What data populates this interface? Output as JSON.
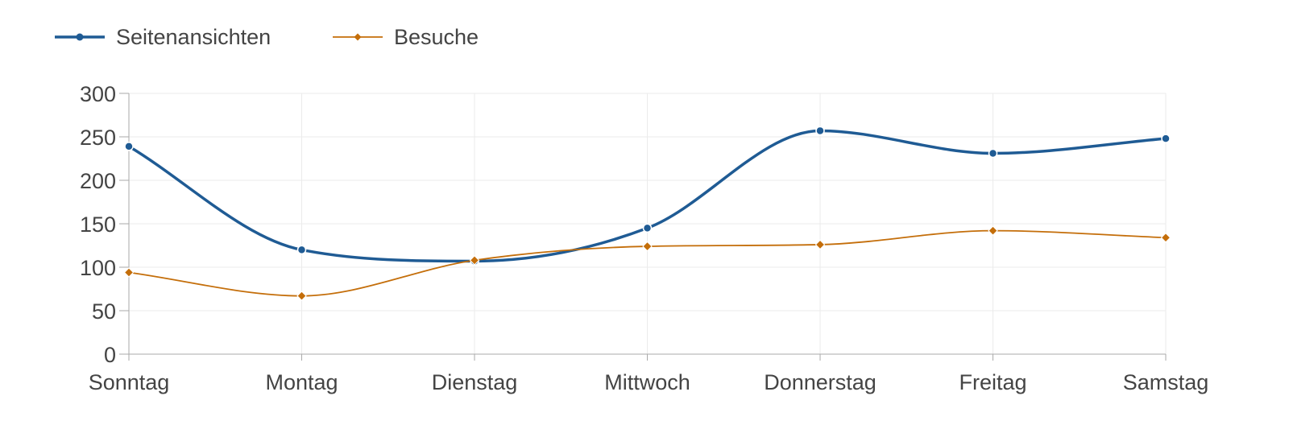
{
  "chart_data": {
    "type": "line",
    "title": "",
    "xlabel": "",
    "ylabel": "",
    "categories": [
      "Sonntag",
      "Montag",
      "Dienstag",
      "Mittwoch",
      "Donnerstag",
      "Freitag",
      "Samstag"
    ],
    "ylim": [
      0,
      300
    ],
    "yticks": [
      0,
      50,
      100,
      150,
      200,
      250,
      300
    ],
    "grid": true,
    "legend_position": "top-left",
    "series": [
      {
        "name": "Seitenansichten",
        "values": [
          239,
          120,
          107,
          145,
          257,
          231,
          248
        ],
        "color": "#1f5b94",
        "marker": "circle",
        "smooth": true
      },
      {
        "name": "Besuche",
        "values": [
          94,
          67,
          108,
          124,
          126,
          142,
          134
        ],
        "color": "#c46e0a",
        "marker": "diamond",
        "smooth": true
      }
    ]
  }
}
